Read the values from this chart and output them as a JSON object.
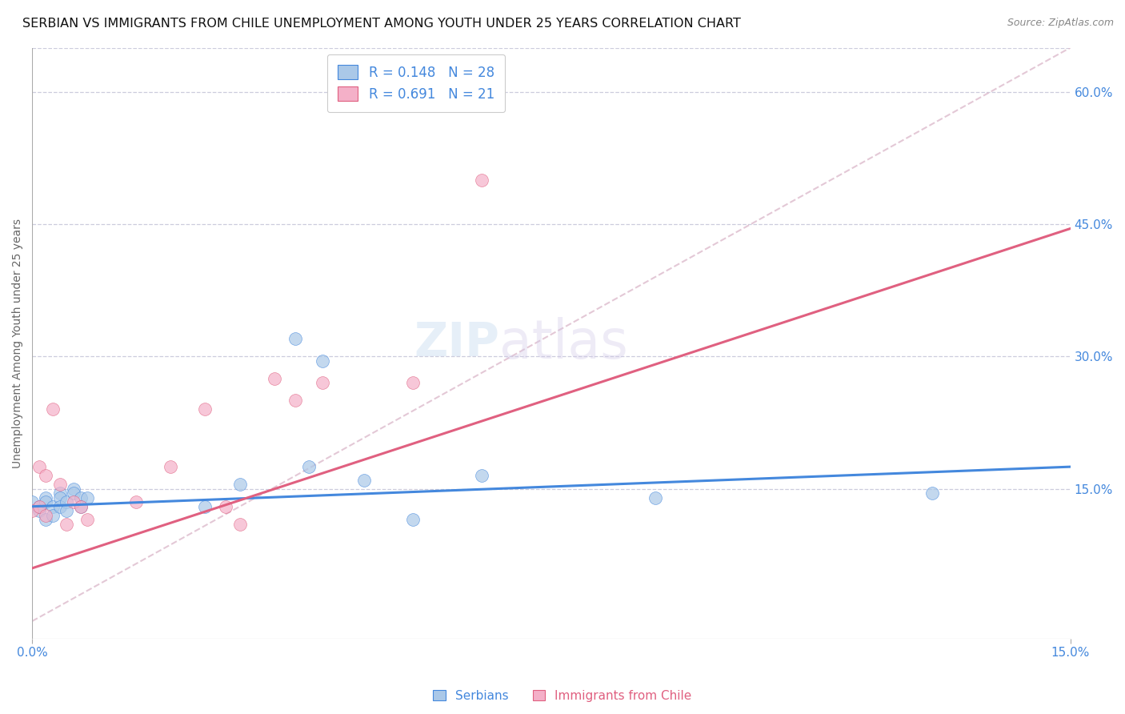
{
  "title": "SERBIAN VS IMMIGRANTS FROM CHILE UNEMPLOYMENT AMONG YOUTH UNDER 25 YEARS CORRELATION CHART",
  "source": "Source: ZipAtlas.com",
  "ylabel": "Unemployment Among Youth under 25 years",
  "x_min": 0.0,
  "x_max": 0.15,
  "y_min": -0.02,
  "y_max": 0.65,
  "x_ticks": [
    0.0,
    0.15
  ],
  "x_tick_labels": [
    "0.0%",
    "15.0%"
  ],
  "y_ticks_right": [
    0.15,
    0.3,
    0.45,
    0.6
  ],
  "y_tick_labels_right": [
    "15.0%",
    "30.0%",
    "45.0%",
    "60.0%"
  ],
  "legend_serbian_r": "R = 0.148",
  "legend_serbian_n": "N = 28",
  "legend_chile_r": "R = 0.691",
  "legend_chile_n": "N = 21",
  "color_serbian": "#aac8e8",
  "color_chile": "#f4b0c8",
  "line_color_serbian": "#4488dd",
  "line_color_chile": "#e06080",
  "watermark_zip": "ZIP",
  "watermark_atlas": "atlas",
  "serbians_x": [
    0.0,
    0.001,
    0.001,
    0.002,
    0.002,
    0.002,
    0.003,
    0.003,
    0.004,
    0.004,
    0.004,
    0.005,
    0.005,
    0.006,
    0.006,
    0.007,
    0.007,
    0.008,
    0.025,
    0.03,
    0.038,
    0.04,
    0.042,
    0.048,
    0.055,
    0.065,
    0.09,
    0.13
  ],
  "serbians_y": [
    0.135,
    0.125,
    0.13,
    0.14,
    0.115,
    0.135,
    0.13,
    0.12,
    0.145,
    0.14,
    0.13,
    0.135,
    0.125,
    0.15,
    0.145,
    0.14,
    0.13,
    0.14,
    0.13,
    0.155,
    0.32,
    0.175,
    0.295,
    0.16,
    0.115,
    0.165,
    0.14,
    0.145
  ],
  "chile_x": [
    0.0,
    0.001,
    0.001,
    0.002,
    0.002,
    0.003,
    0.004,
    0.005,
    0.006,
    0.007,
    0.008,
    0.015,
    0.02,
    0.025,
    0.028,
    0.03,
    0.035,
    0.038,
    0.042,
    0.055,
    0.065
  ],
  "chile_y": [
    0.125,
    0.13,
    0.175,
    0.165,
    0.12,
    0.24,
    0.155,
    0.11,
    0.135,
    0.13,
    0.115,
    0.135,
    0.175,
    0.24,
    0.13,
    0.11,
    0.275,
    0.25,
    0.27,
    0.27,
    0.5
  ],
  "serbian_trend_x": [
    0.0,
    0.15
  ],
  "serbian_trend_y": [
    0.13,
    0.175
  ],
  "chile_trend_x": [
    0.0,
    0.15
  ],
  "chile_trend_y": [
    0.06,
    0.445
  ],
  "ref_line_x": [
    0.0,
    0.15
  ],
  "ref_line_y": [
    0.0,
    0.65
  ],
  "title_fontsize": 11.5,
  "source_fontsize": 9,
  "axis_label_fontsize": 10,
  "tick_fontsize": 11,
  "legend_fontsize": 12,
  "watermark_fontsize_zip": 42,
  "watermark_fontsize_atlas": 48,
  "background_color": "#ffffff",
  "grid_color": "#ccccdd",
  "scatter_size": 130
}
